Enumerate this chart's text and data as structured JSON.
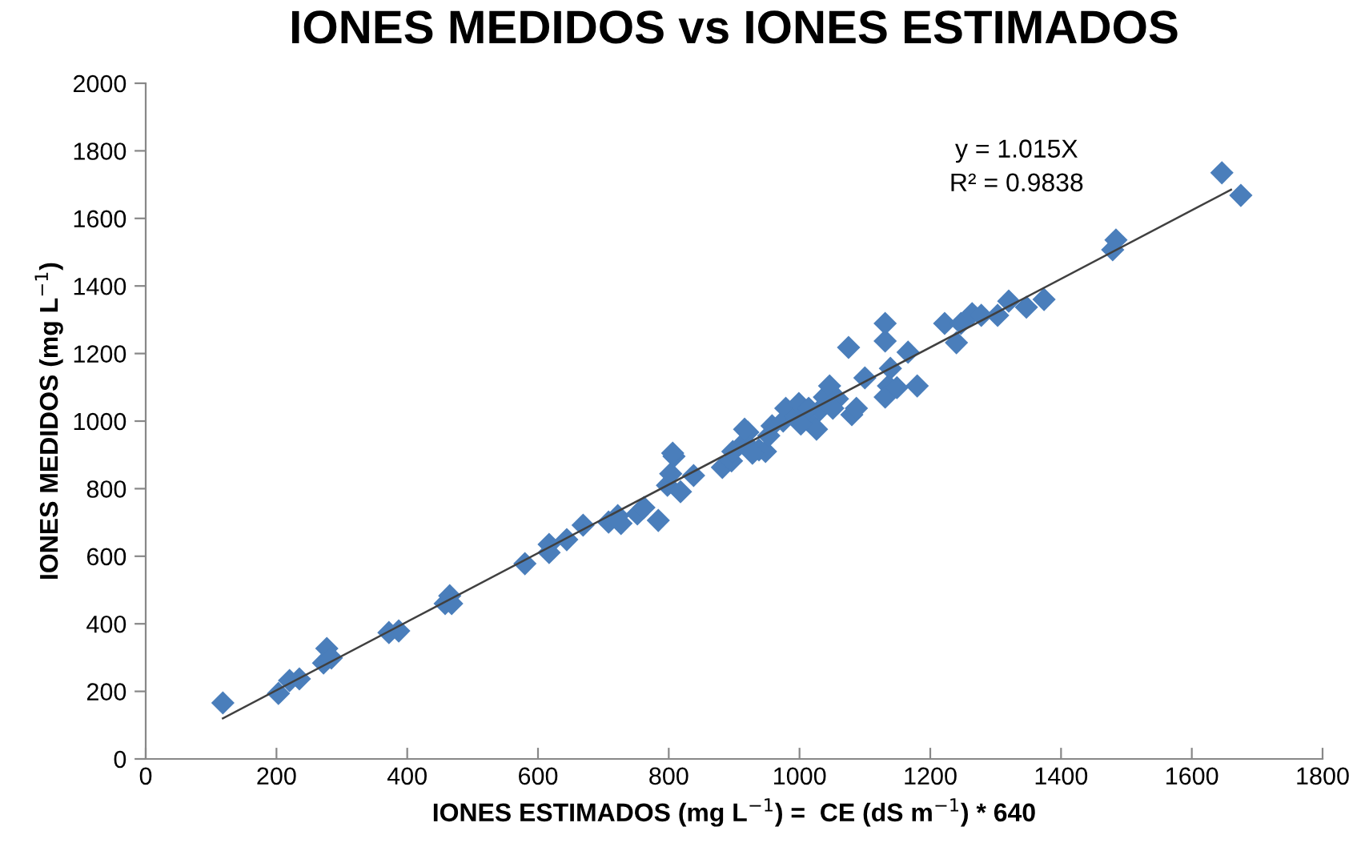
{
  "chart_data": {
    "type": "scatter",
    "title": "IONES MEDIDOS vs IONES ESTIMADOS",
    "xlabel": "IONES ESTIMADOS (mg L$^{−1}$) =  CE (dS m$^{−1}$) * 640",
    "ylabel": "IONES MEDIDOS (mg L$^{−1}$)",
    "annotations": [
      "y = 1.015X",
      "R² = 0.9838"
    ],
    "xlim": [
      0,
      1800
    ],
    "xticks": [
      0,
      200,
      400,
      600,
      800,
      1000,
      1200,
      1400,
      1600,
      1800
    ],
    "ylim": [
      0,
      2000
    ],
    "yticks": [
      0,
      200,
      400,
      600,
      800,
      1000,
      1200,
      1400,
      1600,
      1800,
      2000
    ],
    "grid": false,
    "legend": false,
    "marker": "diamond",
    "series": [
      {
        "color": "#4a7ebb",
        "x": [
          118,
          203,
          220,
          235,
          277,
          272,
          284,
          372,
          387,
          458,
          465,
          468,
          580,
          617,
          617,
          644,
          669,
          708,
          722,
          727,
          752,
          762,
          784,
          798,
          803,
          808,
          806,
          818,
          838,
          882,
          896,
          898,
          916,
          921,
          938,
          948,
          958,
          975,
          979,
          994,
          999,
          1011,
          1026,
          1031,
          1038,
          1046,
          1058,
          1075,
          1080,
          1087,
          1100,
          1131,
          1136,
          1139,
          1131,
          1149,
          1166,
          1180,
          1222,
          1240,
          1247,
          1264,
          1278,
          1303,
          1320,
          1347,
          1374,
          1479,
          1484,
          1646,
          1675,
          1131,
          928,
          953,
          1002,
          1051,
          1014,
          916
        ],
        "values": [
          166,
          194,
          232,
          237,
          327,
          284,
          299,
          374,
          379,
          460,
          483,
          460,
          578,
          611,
          635,
          649,
          692,
          701,
          720,
          697,
          725,
          744,
          706,
          810,
          844,
          896,
          905,
          791,
          839,
          863,
          882,
          910,
          938,
          967,
          915,
          910,
          986,
          1000,
          1038,
          1014,
          1052,
          1005,
          976,
          1033,
          1071,
          1104,
          1066,
          1218,
          1019,
          1038,
          1128,
          1237,
          1104,
          1156,
          1071,
          1099,
          1204,
          1104,
          1289,
          1232,
          1289,
          1318,
          1313,
          1313,
          1355,
          1337,
          1360,
          1507,
          1536,
          1735,
          1668,
          1289,
          905,
          957,
          991,
          1038,
          1038,
          976
        ]
      },
      {
        "type": "line",
        "color": "#404040",
        "marker": "none",
        "x": [
          118,
          1660
        ],
        "values": [
          120,
          1685
        ]
      }
    ]
  }
}
